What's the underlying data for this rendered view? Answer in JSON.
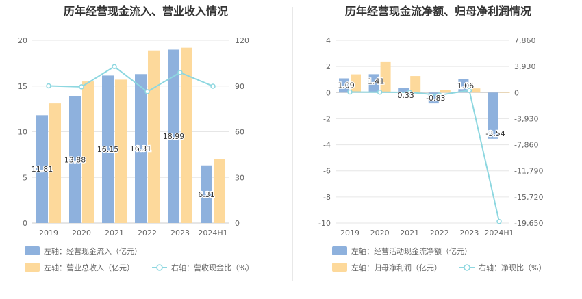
{
  "colors": {
    "blue": "#8eb1dd",
    "orange": "#fdd99b",
    "line": "#8dd7e0",
    "text": "#333333",
    "axis": "#666666",
    "grid": "#e6e6e6"
  },
  "chart_data": [
    {
      "type": "bar",
      "title": "历年经营现金流入、营业收入情况",
      "categories": [
        "2019",
        "2020",
        "2021",
        "2022",
        "2023",
        "2024H1"
      ],
      "y_left": {
        "ticks": [
          "0",
          "5",
          "10",
          "15",
          "20"
        ],
        "min": 0,
        "max": 20
      },
      "y_right": {
        "ticks": [
          "0",
          "30",
          "60",
          "90",
          "120"
        ],
        "min": 0,
        "max": 120
      },
      "series": [
        {
          "name": "左轴：经营现金流入（亿元）",
          "type": "bar",
          "axis": "left",
          "values": [
            11.81,
            13.88,
            16.15,
            16.31,
            18.99,
            6.31
          ],
          "labels": [
            "11.81",
            "13.88",
            "16.15",
            "16.31",
            "18.99",
            "6.31"
          ]
        },
        {
          "name": "左轴：营业总收入（亿元）",
          "type": "bar",
          "axis": "left",
          "values": [
            13.1,
            15.5,
            15.7,
            18.9,
            19.2,
            7.0
          ]
        },
        {
          "name": "右轴：营收现金比（%）",
          "type": "line",
          "axis": "right",
          "values": [
            90.1,
            89.5,
            102.8,
            86.3,
            98.9,
            89.9
          ]
        }
      ]
    },
    {
      "type": "bar",
      "title": "历年经营现金流净额、归母净利润情况",
      "categories": [
        "2019",
        "2020",
        "2021",
        "2022",
        "2023",
        "2024H1"
      ],
      "y_left": {
        "ticks": [
          "-10",
          "-8",
          "-6",
          "-4",
          "-2",
          "0",
          "2",
          "4"
        ],
        "min": -10,
        "max": 4
      },
      "y_right": {
        "ticks": [
          "-19,650",
          "-15,720",
          "-11,790",
          "-7,860",
          "-3,930",
          "0",
          "3,930",
          "7,860"
        ],
        "min": -19650,
        "max": 7860
      },
      "series": [
        {
          "name": "左轴：经营活动现金流净额（亿元）",
          "type": "bar",
          "axis": "left",
          "values": [
            1.09,
            1.41,
            0.33,
            -0.83,
            1.06,
            -3.54
          ],
          "labels": [
            "1.09",
            "1.41",
            "0.33",
            "-0.83",
            "1.06",
            "-3.54"
          ]
        },
        {
          "name": "左轴：归母净利润（亿元）",
          "type": "bar",
          "axis": "left",
          "values": [
            1.4,
            2.38,
            1.27,
            0.22,
            0.32,
            -0.02
          ]
        },
        {
          "name": "右轴：净现比（%）",
          "type": "line",
          "axis": "right",
          "values": [
            78,
            59,
            26,
            -377,
            331,
            -19420
          ]
        }
      ]
    }
  ]
}
